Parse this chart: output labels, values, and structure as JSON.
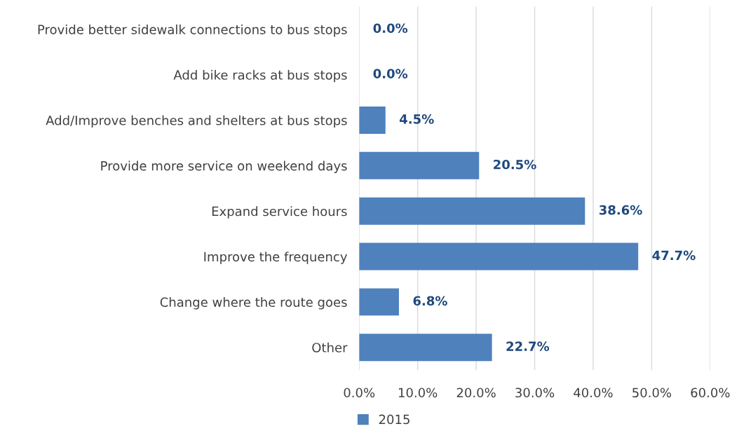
{
  "chart_data": {
    "type": "bar",
    "orientation": "horizontal",
    "categories": [
      "Provide better sidewalk connections to bus stops",
      "Add bike racks at bus stops",
      "Add/Improve benches and shelters at bus stops",
      "Provide more service on weekend days",
      "Expand service hours",
      "Improve the frequency",
      "Change where the route goes",
      "Other"
    ],
    "series": [
      {
        "name": "2015",
        "color": "#4f81bd",
        "values": [
          0.0,
          0.0,
          4.5,
          20.5,
          38.6,
          47.7,
          6.8,
          22.7
        ],
        "value_labels": [
          "0.0%",
          "0.0%",
          "4.5%",
          "20.5%",
          "38.6%",
          "47.7%",
          "6.8%",
          "22.7%"
        ]
      }
    ],
    "xlim": [
      0,
      60
    ],
    "xticks": [
      {
        "value": 0,
        "label": "0.0%"
      },
      {
        "value": 10,
        "label": "10.0%"
      },
      {
        "value": 20,
        "label": "20.0%"
      },
      {
        "value": 30,
        "label": "30.0%"
      },
      {
        "value": 40,
        "label": "40.0%"
      },
      {
        "value": 50,
        "label": "50.0%"
      },
      {
        "value": 60,
        "label": "60.0%"
      }
    ],
    "grid": "x",
    "legend": "bottom"
  }
}
